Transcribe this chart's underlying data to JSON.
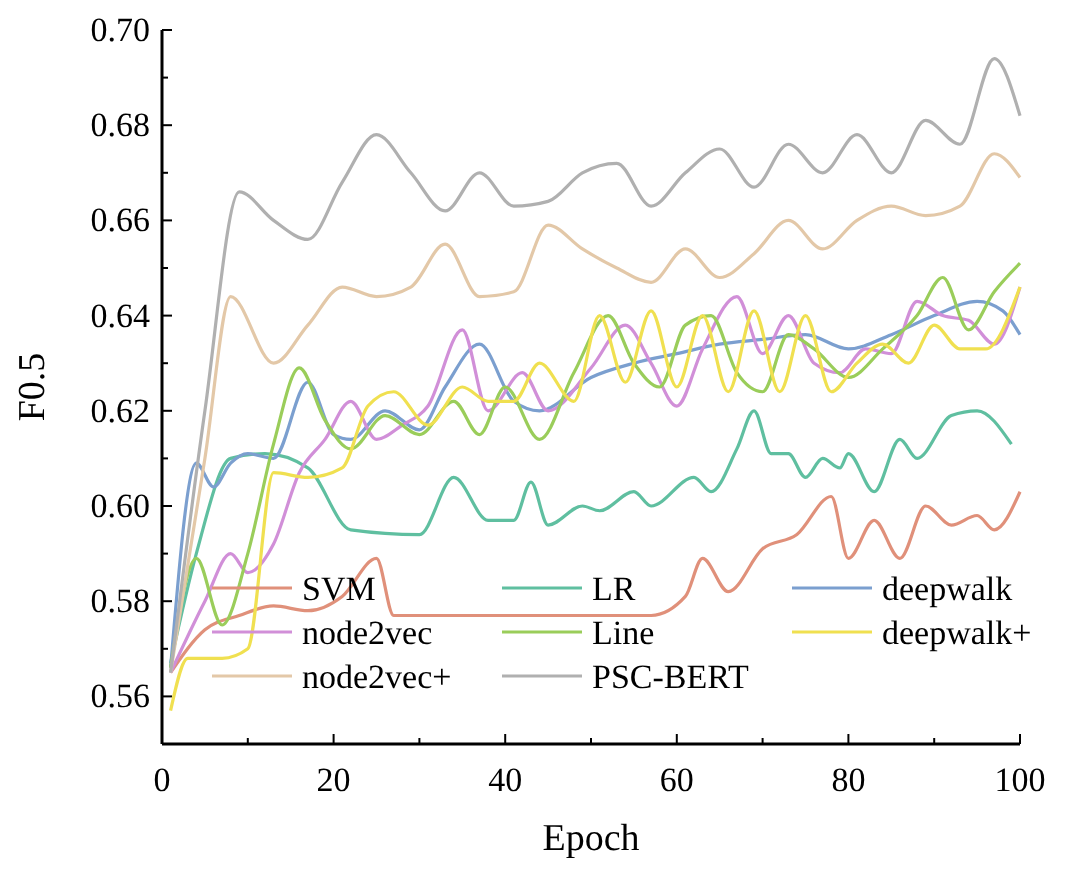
{
  "chart_data": {
    "type": "line",
    "xlabel": "Epoch",
    "ylabel": "F0.5",
    "xlim": [
      0,
      100
    ],
    "ylim": [
      0.55,
      0.7
    ],
    "xticks": [
      0,
      {
        "value": 10,
        "label": null
      },
      20,
      {
        "value": 30,
        "label": null
      },
      40,
      {
        "value": 50,
        "label": null
      },
      60,
      {
        "value": 70,
        "label": null
      },
      80,
      {
        "value": 90,
        "label": null
      },
      100
    ],
    "yticks": [
      {
        "value": 0.55,
        "label": null
      },
      0.56,
      {
        "value": 0.57,
        "label": null
      },
      0.58,
      {
        "value": 0.59,
        "label": null
      },
      {
        "value": 0.6,
        "label": "0.60"
      },
      {
        "value": 0.61,
        "label": null
      },
      0.62,
      {
        "value": 0.63,
        "label": null
      },
      0.64,
      {
        "value": 0.65,
        "label": null
      },
      0.66,
      {
        "value": 0.67,
        "label": null
      },
      0.68,
      {
        "value": 0.69,
        "label": null
      },
      {
        "value": 0.7,
        "label": "0.70"
      }
    ],
    "grid": false,
    "legend": "bottom",
    "marker": "none",
    "line_style": "solid",
    "series": [
      {
        "name": "SVM",
        "color": "#e0907a",
        "x": [
          1,
          5,
          9,
          13,
          17,
          21,
          25,
          27,
          33,
          45,
          57,
          61,
          63,
          66,
          70,
          74,
          78,
          80,
          83,
          86,
          89,
          92,
          95,
          97,
          100
        ],
        "values": [
          0.565,
          0.574,
          0.577,
          0.579,
          0.578,
          0.581,
          0.589,
          0.577,
          0.577,
          0.577,
          0.577,
          0.581,
          0.589,
          0.582,
          0.591,
          0.594,
          0.602,
          0.589,
          0.597,
          0.589,
          0.6,
          0.596,
          0.598,
          0.595,
          0.603
        ]
      },
      {
        "name": "LR",
        "color": "#5fbfa0",
        "x": [
          1,
          4,
          8,
          12,
          17,
          22,
          30,
          34,
          38,
          41,
          43,
          45,
          49,
          51,
          55,
          57,
          62,
          64,
          67,
          69,
          71,
          73,
          75,
          77,
          79,
          80,
          83,
          86,
          88,
          92,
          95,
          99
        ],
        "values": [
          0.567,
          0.59,
          0.61,
          0.611,
          0.608,
          0.595,
          0.594,
          0.606,
          0.597,
          0.597,
          0.605,
          0.596,
          0.6,
          0.599,
          0.603,
          0.6,
          0.606,
          0.603,
          0.612,
          0.62,
          0.611,
          0.611,
          0.606,
          0.61,
          0.608,
          0.611,
          0.603,
          0.614,
          0.61,
          0.619,
          0.62,
          0.613
        ]
      },
      {
        "name": "deepwalk",
        "color": "#7b9fcf",
        "x": [
          1,
          4,
          6,
          8,
          10,
          13,
          17,
          20,
          22,
          26,
          30,
          33,
          37,
          41,
          44,
          50,
          55,
          60,
          65,
          70,
          75,
          80,
          85,
          90,
          95,
          98,
          100
        ],
        "values": [
          0.566,
          0.609,
          0.604,
          0.609,
          0.611,
          0.61,
          0.626,
          0.615,
          0.614,
          0.62,
          0.616,
          0.625,
          0.634,
          0.622,
          0.62,
          0.627,
          0.63,
          0.632,
          0.634,
          0.635,
          0.636,
          0.633,
          0.636,
          0.64,
          0.643,
          0.641,
          0.636
        ]
      },
      {
        "name": "node2vec",
        "color": "#d18fd8",
        "x": [
          1,
          5,
          8,
          10,
          13,
          16,
          19,
          22,
          25,
          28,
          31,
          35,
          38,
          42,
          45,
          50,
          54,
          57,
          60,
          63,
          67,
          70,
          73,
          76,
          79,
          82,
          85,
          88,
          91,
          94,
          97,
          100
        ],
        "values": [
          0.565,
          0.58,
          0.59,
          0.586,
          0.592,
          0.607,
          0.614,
          0.622,
          0.614,
          0.617,
          0.621,
          0.637,
          0.62,
          0.628,
          0.62,
          0.629,
          0.638,
          0.63,
          0.621,
          0.633,
          0.644,
          0.632,
          0.64,
          0.63,
          0.628,
          0.633,
          0.632,
          0.643,
          0.64,
          0.639,
          0.634,
          0.646
        ]
      },
      {
        "name": "Line",
        "color": "#9acd5a",
        "x": [
          1,
          4,
          7,
          10,
          13,
          16,
          19,
          22,
          26,
          30,
          34,
          37,
          40,
          44,
          48,
          52,
          55,
          58,
          61,
          64,
          67,
          70,
          73,
          76,
          80,
          84,
          88,
          91,
          94,
          97,
          100
        ],
        "values": [
          0.566,
          0.589,
          0.575,
          0.59,
          0.613,
          0.629,
          0.618,
          0.612,
          0.619,
          0.615,
          0.622,
          0.615,
          0.625,
          0.614,
          0.628,
          0.64,
          0.63,
          0.625,
          0.638,
          0.64,
          0.628,
          0.624,
          0.636,
          0.633,
          0.627,
          0.633,
          0.64,
          0.648,
          0.637,
          0.645,
          0.651
        ]
      },
      {
        "name": "deepwalk+",
        "color": "#f0e050",
        "x": [
          1,
          3,
          7,
          10,
          13,
          17,
          21,
          24,
          27,
          31,
          35,
          38,
          41,
          44,
          48,
          51,
          54,
          57,
          60,
          63,
          66,
          69,
          72,
          75,
          78,
          81,
          84,
          87,
          90,
          93,
          96,
          100
        ],
        "values": [
          0.557,
          0.568,
          0.568,
          0.57,
          0.607,
          0.606,
          0.608,
          0.621,
          0.624,
          0.617,
          0.625,
          0.622,
          0.622,
          0.63,
          0.622,
          0.64,
          0.626,
          0.641,
          0.625,
          0.64,
          0.624,
          0.641,
          0.624,
          0.64,
          0.624,
          0.63,
          0.634,
          0.63,
          0.638,
          0.633,
          0.633,
          0.646
        ]
      },
      {
        "name": "node2vec+",
        "color": "#e3c8a8",
        "x": [
          1,
          5,
          8,
          13,
          17,
          21,
          25,
          29,
          33,
          37,
          41,
          45,
          49,
          53,
          57,
          61,
          65,
          69,
          73,
          77,
          81,
          85,
          89,
          93,
          97,
          100
        ],
        "values": [
          0.565,
          0.61,
          0.644,
          0.63,
          0.638,
          0.646,
          0.644,
          0.646,
          0.655,
          0.644,
          0.645,
          0.659,
          0.654,
          0.65,
          0.647,
          0.654,
          0.648,
          0.653,
          0.66,
          0.654,
          0.66,
          0.663,
          0.661,
          0.663,
          0.674,
          0.669
        ]
      },
      {
        "name": "PSC-BERT",
        "color": "#b0b0b0",
        "x": [
          1,
          5,
          9,
          13,
          17,
          21,
          25,
          29,
          33,
          37,
          41,
          45,
          49,
          53,
          57,
          61,
          65,
          69,
          73,
          77,
          81,
          85,
          89,
          93,
          97,
          100
        ],
        "values": [
          0.565,
          0.62,
          0.666,
          0.66,
          0.656,
          0.668,
          0.678,
          0.67,
          0.662,
          0.67,
          0.663,
          0.664,
          0.67,
          0.672,
          0.663,
          0.67,
          0.675,
          0.667,
          0.676,
          0.67,
          0.678,
          0.67,
          0.681,
          0.676,
          0.694,
          0.682
        ]
      }
    ]
  }
}
